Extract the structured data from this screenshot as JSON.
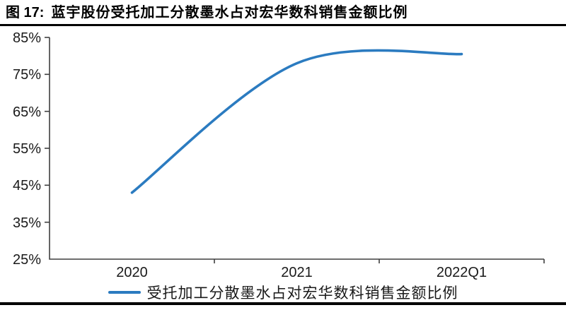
{
  "figure": {
    "label": "图 17:",
    "title": "蓝宇股份受托加工分散墨水占对宏华数科销售金额比例"
  },
  "chart_data": {
    "type": "line",
    "title": "蓝宇股份受托加工分散墨水占对宏华数科销售金额比例",
    "categories": [
      "2020",
      "2021",
      "2022Q1"
    ],
    "series": [
      {
        "name": "受托加工分散墨水占对宏华数科销售金额比例",
        "values": [
          43,
          78,
          80.5
        ]
      }
    ],
    "unit": "%",
    "xlabel": "",
    "ylabel": "",
    "ylim": [
      25,
      85
    ],
    "y_tick_step": 10,
    "y_tick_labels": [
      "85%",
      "75%",
      "65%",
      "55%",
      "45%",
      "35%",
      "25%"
    ],
    "grid": false,
    "smoothed_line": true,
    "legend_position": "bottom",
    "line_color": "#2b7bc0"
  },
  "legend": {
    "label": "受托加工分散墨水占对宏华数科销售金额比例"
  },
  "colors": {
    "line": "#2b7bc0",
    "axis": "#3f3f3f",
    "text": "#1a1a1a",
    "rule": "#000000"
  }
}
